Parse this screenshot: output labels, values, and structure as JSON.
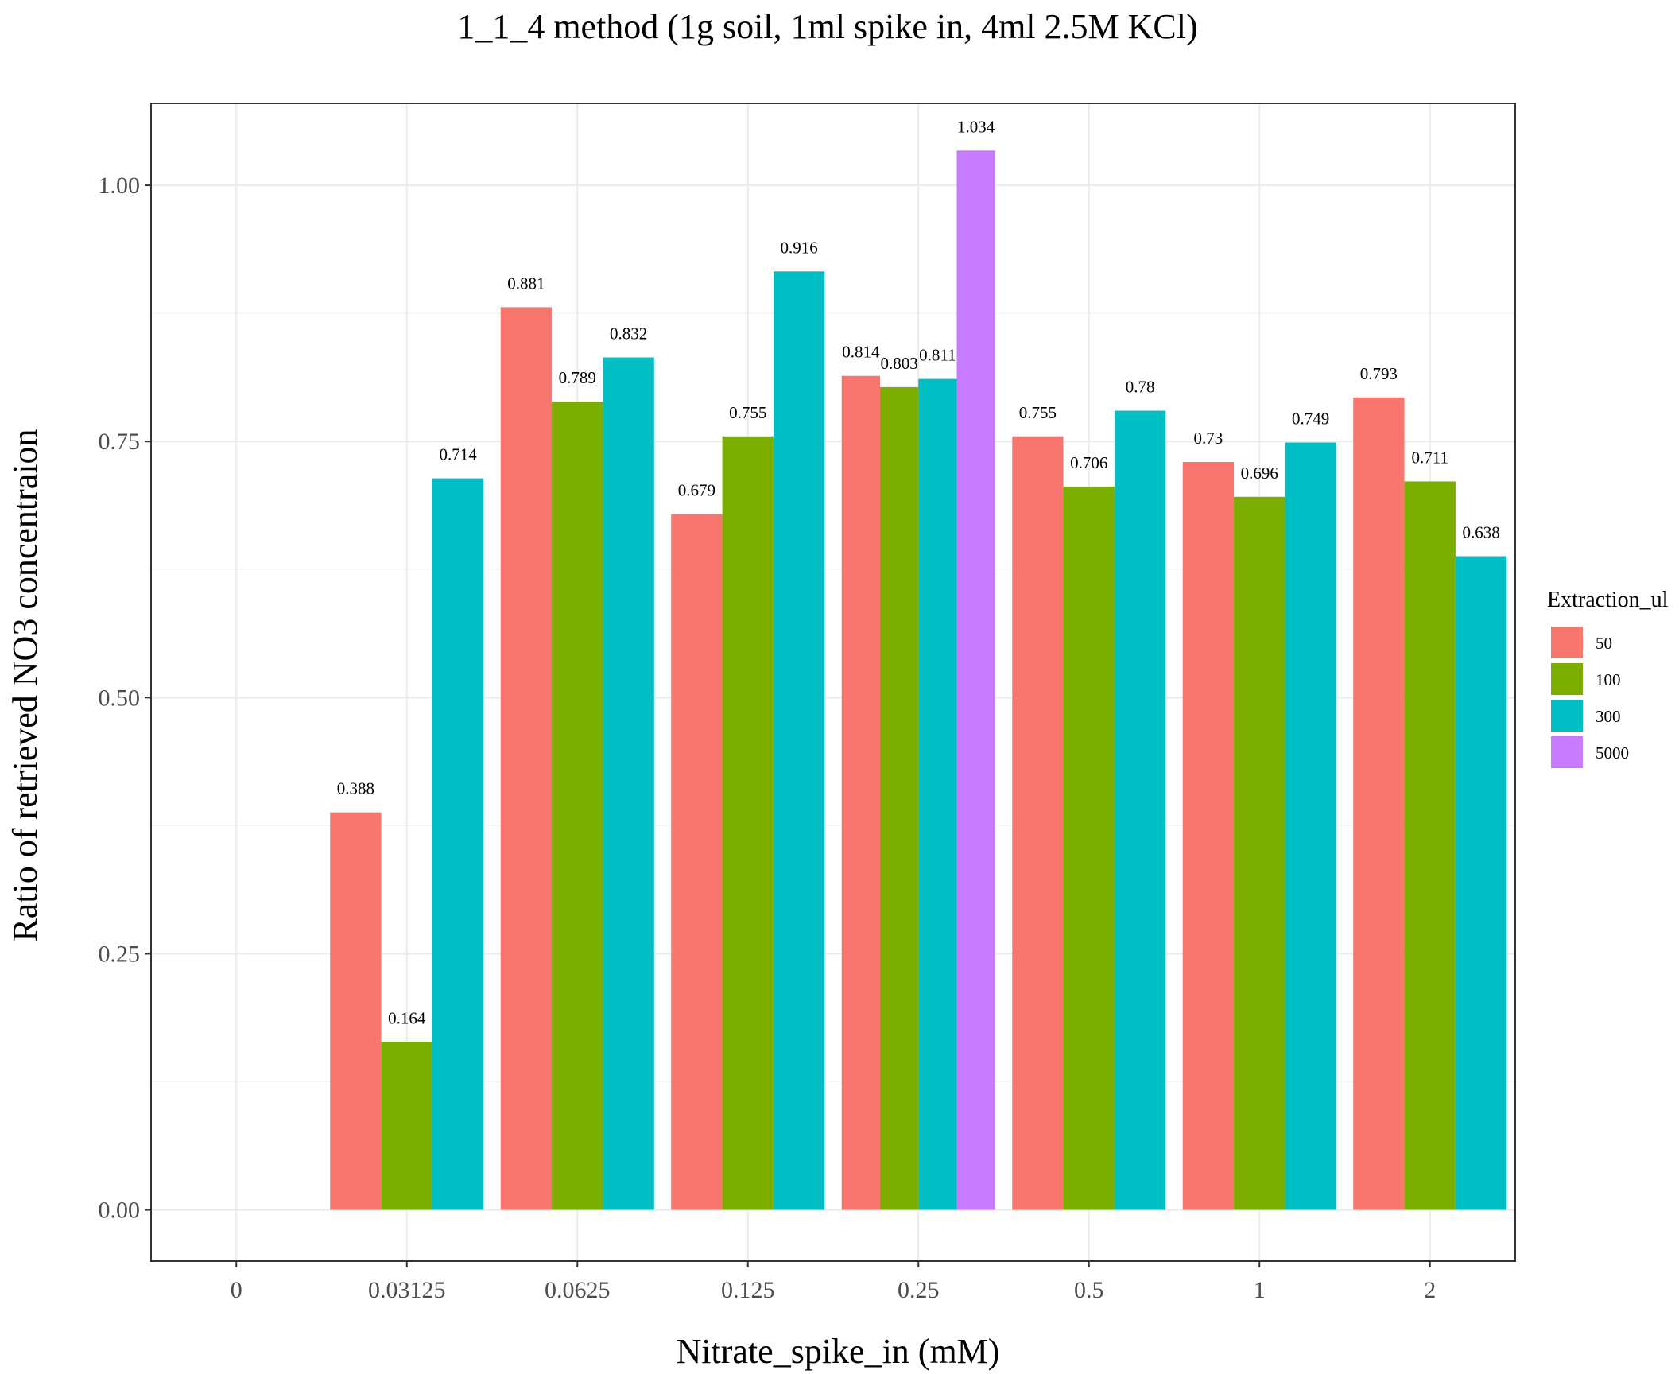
{
  "chart_data": {
    "type": "bar",
    "title": "1_1_4 method (1g soil, 1ml spike in, 4ml 2.5M KCl)",
    "xlabel": "Nitrate_spike_in (mM)",
    "ylabel": "Ratio of retrieved NO3 concentraion",
    "categories": [
      "0",
      "0.03125",
      "0.0625",
      "0.125",
      "0.25",
      "0.5",
      "1",
      "2"
    ],
    "ylim": [
      -0.05,
      1.08
    ],
    "yticks": [
      "0.00",
      "0.25",
      "0.50",
      "0.75",
      "1.00"
    ],
    "grid": true,
    "legend_title": "Extraction_ul",
    "legend_position": "right",
    "series": [
      {
        "name": "50",
        "color": "#F8766D",
        "values": [
          null,
          0.388,
          0.881,
          0.679,
          0.814,
          0.755,
          0.73,
          0.793
        ],
        "labels": [
          "",
          "0.388",
          "0.881",
          "0.679",
          "0.814",
          "0.755",
          "0.73",
          "0.793"
        ]
      },
      {
        "name": "100",
        "color": "#7CAE00",
        "values": [
          null,
          0.164,
          0.789,
          0.755,
          0.803,
          0.706,
          0.696,
          0.711
        ],
        "labels": [
          "",
          "0.164",
          "0.789",
          "0.755",
          "0.803",
          "0.706",
          "0.696",
          "0.711"
        ]
      },
      {
        "name": "300",
        "color": "#00BFC4",
        "values": [
          null,
          0.714,
          0.832,
          0.916,
          0.811,
          0.78,
          0.749,
          0.638
        ],
        "labels": [
          "",
          "0.714",
          "0.832",
          "0.916",
          "0.811",
          "0.78",
          "0.749",
          "0.638"
        ]
      },
      {
        "name": "5000",
        "color": "#C77CFF",
        "values": [
          null,
          null,
          null,
          null,
          1.034,
          null,
          null,
          null
        ],
        "labels": [
          "",
          "",
          "",
          "",
          "1.034",
          "",
          "",
          ""
        ]
      }
    ]
  }
}
